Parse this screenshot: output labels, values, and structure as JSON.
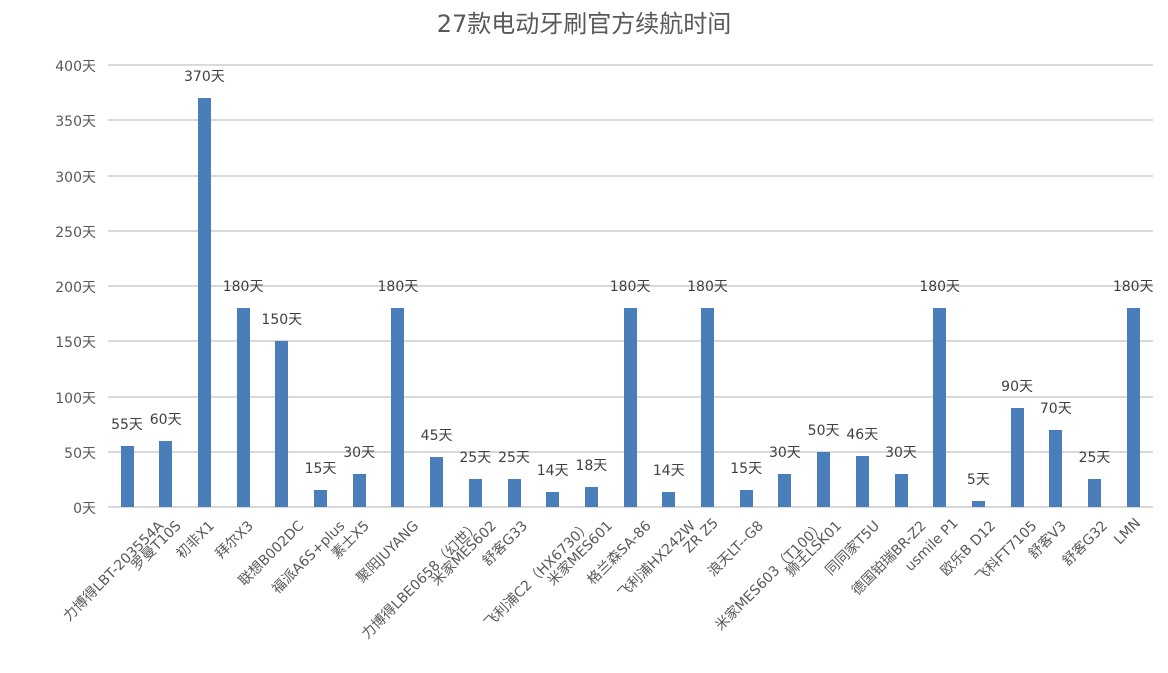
{
  "chart_data": {
    "type": "bar",
    "title": "27款电动牙刷官方续航时间",
    "xlabel": "",
    "ylabel": "",
    "unit": "天",
    "ylim": [
      0,
      400
    ],
    "yticks": [
      0,
      50,
      100,
      150,
      200,
      250,
      300,
      350,
      400
    ],
    "ytick_labels": [
      "0天",
      "50天",
      "100天",
      "150天",
      "200天",
      "250天",
      "300天",
      "350天",
      "400天"
    ],
    "grid": true,
    "legend": null,
    "bar_color": "#4a7ebb",
    "categories": [
      "力博得LBT-203554A",
      "罗曼T10S",
      "初非X1",
      "拜尔X3",
      "联想B002DC",
      "福派A6S+plus",
      "素士X5",
      "聚阳JUYANG",
      "力博得LBE0658（幻世）",
      "米家MES602",
      "舒客G33",
      "飞利浦C2（HX6730）",
      "米家MES601",
      "格兰森SA-86",
      "飞利浦HX242W",
      "ZR Z5",
      "浪天LT--G8",
      "米家MES603（T100）",
      "狮王LSK01",
      "同同家T5U",
      "德国铂瑞BR-Z2",
      "usmile P1",
      "欧乐B D12",
      "飞科FT7105",
      "舒客V3",
      "舒客G32",
      "LMN"
    ],
    "values": [
      55,
      60,
      370,
      180,
      150,
      15,
      30,
      180,
      45,
      25,
      25,
      14,
      18,
      180,
      14,
      180,
      15,
      30,
      50,
      46,
      30,
      180,
      5,
      90,
      70,
      25,
      180
    ],
    "data_labels": [
      "55天",
      "60天",
      "370天",
      "180天",
      "150天",
      "15天",
      "30天",
      "180天",
      "45天",
      "25天",
      "25天",
      "14天",
      "18天",
      "180天",
      "14天",
      "180天",
      "15天",
      "30天",
      "50天",
      "46天",
      "30天",
      "180天",
      "5天",
      "90天",
      "70天",
      "25天",
      "180天"
    ]
  }
}
